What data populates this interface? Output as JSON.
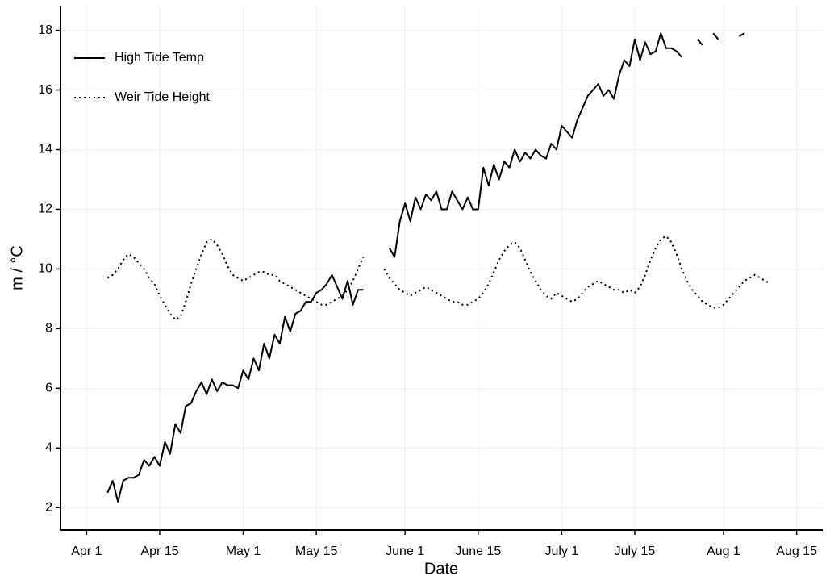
{
  "chart_data": {
    "type": "line",
    "x_label": "Date",
    "y_label": "m / °C",
    "x": [
      "Apr 5",
      "Apr 6",
      "Apr 7",
      "Apr 8",
      "Apr 9",
      "Apr 10",
      "Apr 11",
      "Apr 12",
      "Apr 13",
      "Apr 14",
      "Apr 15",
      "Apr 16",
      "Apr 17",
      "Apr 18",
      "Apr 19",
      "Apr 20",
      "Apr 21",
      "Apr 22",
      "Apr 23",
      "Apr 24",
      "Apr 25",
      "Apr 26",
      "Apr 27",
      "Apr 28",
      "Apr 29",
      "Apr 30",
      "May 1",
      "May 2",
      "May 3",
      "May 4",
      "May 5",
      "May 6",
      "May 7",
      "May 8",
      "May 9",
      "May 10",
      "May 11",
      "May 12",
      "May 13",
      "May 14",
      "May 15",
      "May 16",
      "May 17",
      "May 18",
      "May 19",
      "May 20",
      "May 21",
      "May 22",
      "May 23",
      "May 24",
      "May 25",
      "May 26",
      "May 27",
      "May 28",
      "May 29",
      "May 30",
      "May 31",
      "June 1",
      "June 2",
      "June 3",
      "June 4",
      "June 5",
      "June 6",
      "June 7",
      "June 8",
      "June 9",
      "June 10",
      "June 11",
      "June 12",
      "June 13",
      "June 14",
      "June 15",
      "June 16",
      "June 17",
      "June 18",
      "June 19",
      "June 20",
      "June 21",
      "June 22",
      "June 23",
      "June 24",
      "June 25",
      "June 26",
      "June 27",
      "June 28",
      "June 29",
      "June 30",
      "July 1",
      "July 2",
      "July 3",
      "July 4",
      "July 5",
      "July 6",
      "July 7",
      "July 8",
      "July 9",
      "July 10",
      "July 11",
      "July 12",
      "July 13",
      "July 14",
      "July 15",
      "July 16",
      "July 17",
      "July 18",
      "July 19",
      "July 20",
      "July 21",
      "July 22",
      "July 23",
      "July 24",
      "July 25",
      "July 26",
      "July 27",
      "July 28",
      "July 29",
      "July 30",
      "July 31",
      "Aug 1",
      "Aug 2",
      "Aug 3",
      "Aug 4",
      "Aug 5",
      "Aug 6",
      "Aug 7",
      "Aug 8",
      "Aug 9",
      "Aug 10"
    ],
    "series": [
      {
        "name": "High Tide Temp",
        "color": "#000000",
        "dash": "solid",
        "values": [
          2.5,
          2.9,
          2.2,
          2.9,
          3.0,
          3.0,
          3.1,
          3.6,
          3.4,
          3.7,
          3.4,
          4.2,
          3.8,
          4.8,
          4.5,
          5.4,
          5.5,
          5.9,
          6.2,
          5.8,
          6.3,
          5.9,
          6.2,
          6.1,
          6.1,
          6.0,
          6.6,
          6.3,
          7.0,
          6.6,
          7.5,
          7.0,
          7.8,
          7.5,
          8.4,
          7.9,
          8.5,
          8.6,
          8.9,
          8.9,
          9.2,
          9.3,
          9.5,
          9.8,
          9.4,
          9.0,
          9.6,
          8.8,
          9.3,
          9.3,
          null,
          null,
          null,
          null,
          10.7,
          10.4,
          11.6,
          12.2,
          11.6,
          12.4,
          12.0,
          12.5,
          12.3,
          12.6,
          12.0,
          12.0,
          12.6,
          12.3,
          12.0,
          12.4,
          12.0,
          12.0,
          13.4,
          12.8,
          13.5,
          13.0,
          13.6,
          13.4,
          14.0,
          13.6,
          13.9,
          13.7,
          14.0,
          13.8,
          13.7,
          14.2,
          14.0,
          14.8,
          14.6,
          14.4,
          15.0,
          15.4,
          15.8,
          16.0,
          16.2,
          15.8,
          16.0,
          15.7,
          16.5,
          17.0,
          16.8,
          17.7,
          17.0,
          17.6,
          17.2,
          17.3,
          17.9,
          17.4,
          17.4,
          17.3,
          17.1,
          null,
          null,
          17.7,
          17.5,
          null,
          17.9,
          17.7,
          null,
          null,
          null,
          17.8,
          17.9,
          null,
          null,
          null,
          null,
          null
        ]
      },
      {
        "name": "Weir Tide Height",
        "color": "#000000",
        "dash": "dotted",
        "values": [
          9.7,
          9.8,
          10.0,
          10.3,
          10.5,
          10.4,
          10.2,
          10.0,
          9.7,
          9.5,
          9.1,
          8.8,
          8.5,
          8.3,
          8.4,
          8.9,
          9.5,
          10.0,
          10.5,
          10.9,
          11.0,
          10.8,
          10.5,
          10.1,
          9.8,
          9.7,
          9.6,
          9.7,
          9.8,
          9.9,
          9.9,
          9.8,
          9.8,
          9.6,
          9.5,
          9.4,
          9.3,
          9.2,
          9.1,
          9.0,
          8.9,
          8.8,
          8.8,
          8.9,
          9.0,
          9.1,
          9.3,
          9.6,
          10.0,
          10.4,
          null,
          null,
          null,
          10.0,
          9.7,
          9.5,
          9.3,
          9.2,
          9.1,
          9.2,
          9.3,
          9.4,
          9.3,
          9.2,
          9.1,
          9.0,
          8.9,
          8.9,
          8.8,
          8.8,
          8.9,
          9.0,
          9.2,
          9.5,
          9.9,
          10.3,
          10.6,
          10.8,
          10.9,
          10.7,
          10.3,
          9.9,
          9.6,
          9.3,
          9.1,
          9.0,
          9.2,
          9.1,
          9.0,
          8.9,
          9.0,
          9.2,
          9.4,
          9.5,
          9.6,
          9.5,
          9.4,
          9.3,
          9.3,
          9.2,
          9.3,
          9.2,
          9.4,
          9.8,
          10.3,
          10.7,
          11.0,
          11.1,
          10.9,
          10.5,
          10.0,
          9.6,
          9.3,
          9.1,
          8.9,
          8.8,
          8.7,
          8.7,
          8.8,
          9.0,
          9.2,
          9.4,
          9.6,
          9.7,
          9.8,
          9.7,
          9.6,
          9.5
        ]
      }
    ],
    "xlim": [
      "Mar 27",
      "Aug 20"
    ],
    "xticks": [
      "Apr 1",
      "Apr 15",
      "May 1",
      "May 15",
      "June 1",
      "June 15",
      "July 1",
      "July 15",
      "Aug 1",
      "Aug 15"
    ],
    "ylim": [
      1.25,
      18.8
    ],
    "yticks": [
      2,
      4,
      6,
      8,
      10,
      12,
      14,
      16,
      18
    ],
    "grid": true,
    "legend": "upper left"
  }
}
